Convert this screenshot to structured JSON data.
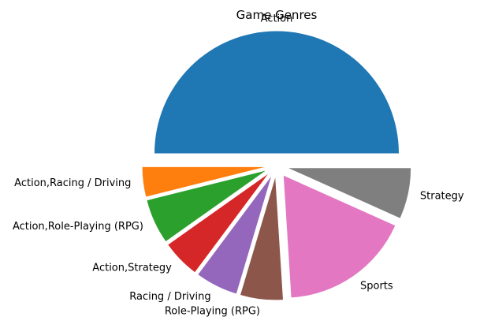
{
  "chart_data": {
    "type": "pie",
    "title": "Game Genres",
    "start_angle_deg": 0,
    "direction": "counterclockwise",
    "slices": [
      {
        "label": "Action",
        "value": 50.0,
        "color": "#1f77b4",
        "exploded": true
      },
      {
        "label": "Action,Racing / Driving",
        "value": 3.9,
        "color": "#ff7f0e",
        "exploded": true
      },
      {
        "label": "Action,Role-Playing (RPG)",
        "value": 5.9,
        "color": "#2ca02c",
        "exploded": true
      },
      {
        "label": "Action,Strategy",
        "value": 5.0,
        "color": "#d62728",
        "exploded": true
      },
      {
        "label": "Racing / Driving",
        "value": 5.6,
        "color": "#9467bd",
        "exploded": true
      },
      {
        "label": "Role-Playing (RPG)",
        "value": 5.6,
        "color": "#8c564b",
        "exploded": true
      },
      {
        "label": "Sports",
        "value": 17.3,
        "color": "#e377c2",
        "exploded": true
      },
      {
        "label": "Strategy",
        "value": 6.7,
        "color": "#7f7f7f",
        "exploded": true
      }
    ]
  }
}
